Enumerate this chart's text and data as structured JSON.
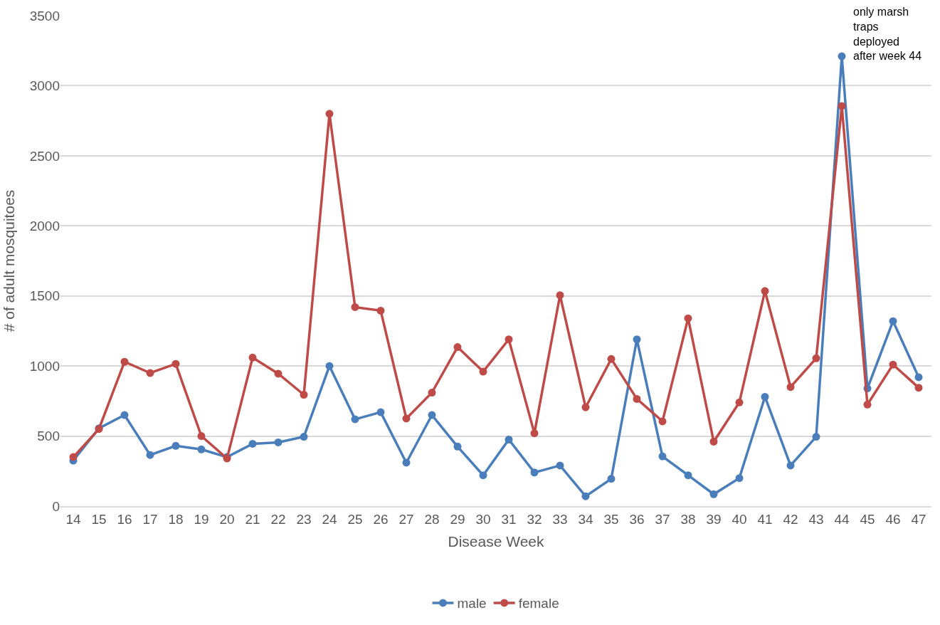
{
  "chart_data": {
    "type": "line",
    "xlabel": "Disease Week",
    "ylabel": "# of adult mosquitoes",
    "categories": [
      "14",
      "15",
      "16",
      "17",
      "18",
      "19",
      "20",
      "21",
      "22",
      "23",
      "24",
      "25",
      "26",
      "27",
      "28",
      "29",
      "30",
      "31",
      "32",
      "33",
      "34",
      "35",
      "36",
      "37",
      "38",
      "39",
      "40",
      "41",
      "42",
      "43",
      "44",
      "45",
      "46",
      "47"
    ],
    "series": [
      {
        "name": "male",
        "color": "#4a7ebb",
        "values": [
          325,
          555,
          650,
          365,
          430,
          405,
          350,
          445,
          455,
          495,
          1000,
          620,
          670,
          310,
          650,
          425,
          220,
          475,
          240,
          290,
          70,
          195,
          1190,
          355,
          220,
          85,
          200,
          780,
          290,
          495,
          3210,
          840,
          1320,
          920
        ]
      },
      {
        "name": "female",
        "color": "#be4b48",
        "values": [
          350,
          550,
          1030,
          950,
          1015,
          500,
          340,
          1060,
          945,
          795,
          2800,
          1420,
          1395,
          625,
          810,
          1135,
          960,
          1190,
          520,
          1505,
          705,
          1050,
          765,
          605,
          1340,
          460,
          740,
          1535,
          850,
          1055,
          2855,
          725,
          1010,
          845
        ]
      }
    ],
    "ylim": [
      0,
      3500
    ],
    "yticks": [
      0,
      500,
      1000,
      1500,
      2000,
      2500,
      3000,
      3500
    ],
    "grid": "y",
    "legend": "bottom",
    "marker": "circle",
    "line_style": "solid",
    "annotations": [
      {
        "text": "only marsh traps deployed after week 44",
        "x": "44",
        "y": 3210
      }
    ]
  }
}
